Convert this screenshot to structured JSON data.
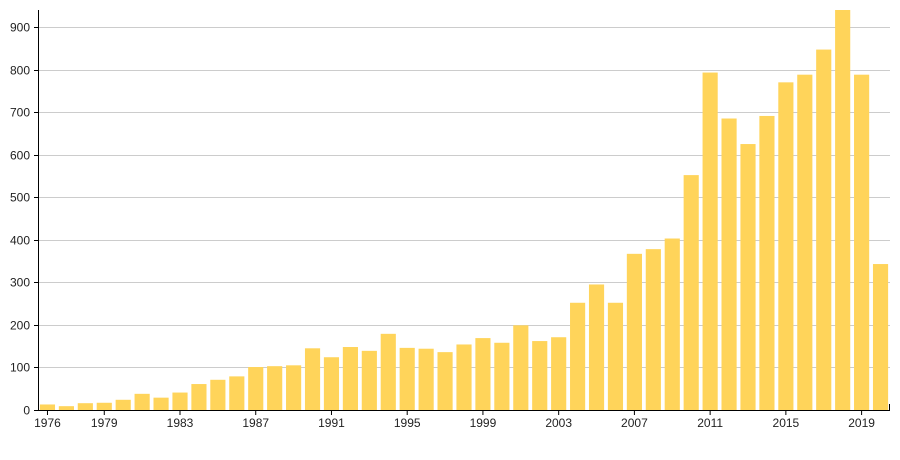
{
  "chart_data": {
    "type": "bar",
    "title": "",
    "xlabel": "",
    "ylabel": "",
    "bar_color": "#ffd45a",
    "grid": true,
    "ylim": [
      0,
      940
    ],
    "yticks": [
      0,
      100,
      200,
      300,
      400,
      500,
      600,
      700,
      800,
      900
    ],
    "x_tick_labels": [
      "1976",
      "1979",
      "1983",
      "1987",
      "1991",
      "1995",
      "1999",
      "2003",
      "2007",
      "2011",
      "2015",
      "2019"
    ],
    "categories": [
      "1976",
      "1977",
      "1978",
      "1979",
      "1980",
      "1981",
      "1982",
      "1983",
      "1984",
      "1985",
      "1986",
      "1987",
      "1988",
      "1989",
      "1990",
      "1991",
      "1992",
      "1993",
      "1994",
      "1995",
      "1996",
      "1997",
      "1998",
      "1999",
      "2000",
      "2001",
      "2002",
      "2003",
      "2004",
      "2005",
      "2006",
      "2007",
      "2008",
      "2009",
      "2010",
      "2011",
      "2012",
      "2013",
      "2014",
      "2015",
      "2016",
      "2017",
      "2018",
      "2019",
      "2020"
    ],
    "values": [
      13,
      9,
      16,
      17,
      24,
      38,
      29,
      41,
      61,
      71,
      79,
      101,
      103,
      105,
      145,
      124,
      148,
      139,
      179,
      146,
      144,
      136,
      154,
      169,
      158,
      199,
      162,
      171,
      252,
      295,
      252,
      367,
      378,
      403,
      552,
      793,
      685,
      625,
      691,
      770,
      788,
      847,
      940,
      788,
      343
    ]
  }
}
